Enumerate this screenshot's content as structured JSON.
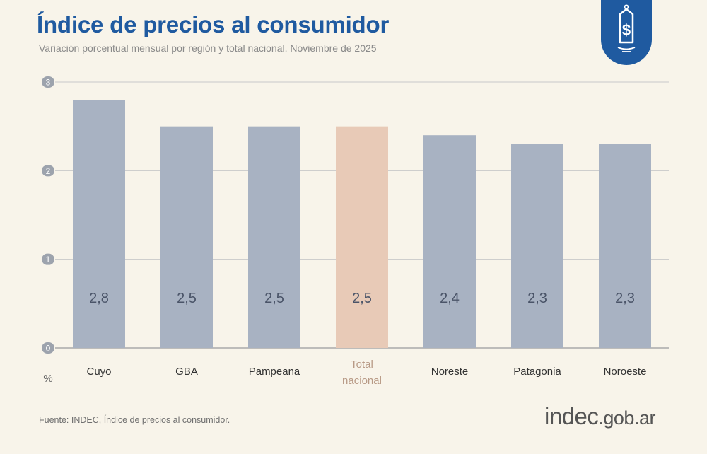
{
  "header": {
    "title": "Índice de precios al consumidor",
    "subtitle": "Variación porcentual mensual por región y total nacional. Noviembre de 2025"
  },
  "badge": {
    "icon": "price-tag-dollar-icon",
    "color": "#1f5aa0"
  },
  "chart_data": {
    "type": "bar",
    "categories": [
      "Cuyo",
      "GBA",
      "Pampeana",
      "Total nacional",
      "Noreste",
      "Patagonia",
      "Noroeste"
    ],
    "category_lines": [
      [
        "Cuyo"
      ],
      [
        "GBA"
      ],
      [
        "Pampeana"
      ],
      [
        "Total",
        "nacional"
      ],
      [
        "Noreste"
      ],
      [
        "Patagonia"
      ],
      [
        "Noroeste"
      ]
    ],
    "values": [
      2.8,
      2.5,
      2.5,
      2.5,
      2.4,
      2.3,
      2.3
    ],
    "value_labels": [
      "2,8",
      "2,5",
      "2,5",
      "2,5",
      "2,4",
      "2,3",
      "2,3"
    ],
    "highlight_index": 3,
    "ylim": [
      0,
      3
    ],
    "yticks": [
      0,
      1,
      2,
      3
    ],
    "ytick_labels": [
      "0",
      "1",
      "2",
      "3"
    ],
    "unit_label": "%",
    "grid": true,
    "colors": {
      "bar": "#a8b2c2",
      "highlight": "#e8cab7",
      "label": "#4a5468",
      "grid": "#c9c9c9",
      "tick_bg": "#9da3ad"
    }
  },
  "footer": {
    "source": "Fuente: INDEC, Índice de precios al consumidor.",
    "logo_main": "indec",
    "logo_domain": ".gob.ar"
  }
}
